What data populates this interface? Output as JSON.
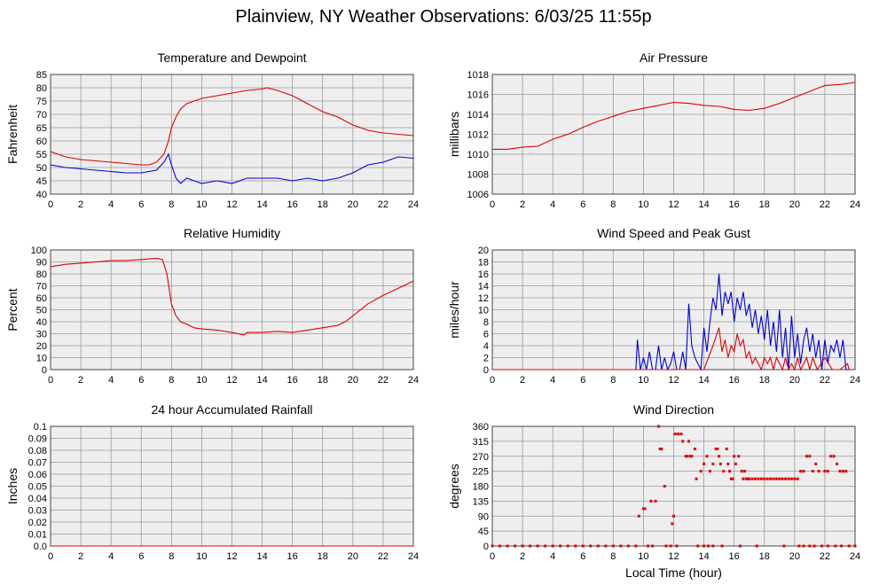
{
  "title": "Plainview, NY Weather Observations: 6/03/25 11:55p",
  "footer_xlabel": "Local Time (hour)",
  "colors": {
    "red": "#e00000",
    "blue": "#0000dd",
    "grid": "#999999",
    "bg": "#eeeeee"
  },
  "chart_data": [
    {
      "id": "temperature",
      "type": "line",
      "title": "Temperature and Dewpoint",
      "xlabel": "",
      "ylabel": "Fahrenheit",
      "xlim": [
        0,
        24
      ],
      "ylim": [
        40,
        85
      ],
      "xticks": [
        0,
        2,
        4,
        6,
        8,
        10,
        12,
        14,
        16,
        18,
        20,
        22,
        24
      ],
      "yticks": [
        40,
        45,
        50,
        55,
        60,
        65,
        70,
        75,
        80,
        85
      ],
      "grid": true,
      "series": [
        {
          "color": "#e00000",
          "x": [
            0,
            1,
            2,
            3,
            4,
            5,
            6,
            6.5,
            7,
            7.5,
            7.8,
            8,
            8.3,
            8.6,
            9,
            9.5,
            10,
            11,
            12,
            13,
            14,
            14.3,
            15,
            16,
            17,
            18,
            19,
            20,
            21,
            22,
            23,
            24
          ],
          "values": [
            56,
            54,
            53,
            52.5,
            52,
            51.5,
            51,
            51,
            52,
            55,
            60,
            65,
            69,
            72,
            74,
            75,
            76,
            77,
            78,
            79,
            79.5,
            80,
            79,
            77,
            74,
            71,
            69,
            66,
            64,
            63,
            62.5,
            62
          ]
        },
        {
          "color": "#0000dd",
          "x": [
            0,
            1,
            2,
            3,
            4,
            5,
            6,
            7,
            7.5,
            7.8,
            8,
            8.3,
            8.6,
            9,
            9.5,
            10,
            11,
            12,
            13,
            14,
            15,
            16,
            17,
            18,
            19,
            20,
            21,
            22,
            23,
            24
          ],
          "values": [
            51,
            50,
            49.5,
            49,
            48.5,
            48,
            48,
            49,
            52,
            55,
            51,
            46,
            44,
            46,
            45,
            44,
            45,
            44,
            46,
            46,
            46,
            45,
            46,
            45,
            46,
            48,
            51,
            52,
            54,
            53.5
          ]
        }
      ]
    },
    {
      "id": "pressure",
      "type": "line",
      "title": "Air Pressure",
      "xlabel": "",
      "ylabel": "millibars",
      "xlim": [
        0,
        24
      ],
      "ylim": [
        1006,
        1018
      ],
      "xticks": [
        0,
        2,
        4,
        6,
        8,
        10,
        12,
        14,
        16,
        18,
        20,
        22,
        24
      ],
      "yticks": [
        1006,
        1008,
        1010,
        1012,
        1014,
        1016,
        1018
      ],
      "grid": true,
      "series": [
        {
          "color": "#e00000",
          "x": [
            0,
            1,
            2,
            3,
            4,
            5,
            6,
            7,
            8,
            9,
            10,
            11,
            12,
            13,
            14,
            15,
            16,
            17,
            18,
            19,
            20,
            21,
            22,
            23,
            24
          ],
          "values": [
            1010.5,
            1010.5,
            1010.7,
            1010.8,
            1011.5,
            1012,
            1012.7,
            1013.3,
            1013.8,
            1014.3,
            1014.6,
            1014.9,
            1015.2,
            1015.1,
            1014.9,
            1014.8,
            1014.5,
            1014.4,
            1014.6,
            1015.1,
            1015.7,
            1016.3,
            1016.9,
            1017,
            1017.2
          ]
        }
      ]
    },
    {
      "id": "humidity",
      "type": "line",
      "title": "Relative Humidity",
      "xlabel": "",
      "ylabel": "Percent",
      "xlim": [
        0,
        24
      ],
      "ylim": [
        0,
        100
      ],
      "xticks": [
        0,
        2,
        4,
        6,
        8,
        10,
        12,
        14,
        16,
        18,
        20,
        22,
        24
      ],
      "yticks": [
        0,
        10,
        20,
        30,
        40,
        50,
        60,
        70,
        80,
        90,
        100
      ],
      "grid": true,
      "series": [
        {
          "color": "#e00000",
          "x": [
            0,
            1,
            2,
            3,
            4,
            5,
            6,
            7,
            7.4,
            7.7,
            8,
            8.3,
            8.6,
            9,
            9.5,
            10,
            11,
            12,
            12.8,
            13,
            14,
            15,
            16,
            17,
            18,
            19,
            19.5,
            20,
            21,
            22,
            23,
            24
          ],
          "values": [
            86,
            88,
            89,
            90,
            91,
            91,
            92,
            93,
            92,
            80,
            55,
            45,
            40,
            38,
            35,
            34,
            33,
            31,
            29,
            31,
            31,
            32,
            31,
            33,
            35,
            37,
            40,
            45,
            55,
            62,
            68,
            74
          ]
        }
      ]
    },
    {
      "id": "wind",
      "type": "line",
      "title": "Wind Speed and Peak Gust",
      "xlabel": "",
      "ylabel": "miles/hour",
      "xlim": [
        0,
        24
      ],
      "ylim": [
        0,
        20
      ],
      "xticks": [
        0,
        2,
        4,
        6,
        8,
        10,
        12,
        14,
        16,
        18,
        20,
        22,
        24
      ],
      "yticks": [
        0,
        2,
        4,
        6,
        8,
        10,
        12,
        14,
        16,
        18,
        20
      ],
      "grid": true,
      "series": [
        {
          "color": "#0000dd",
          "x": [
            0,
            9.5,
            9.6,
            9.8,
            10,
            10.2,
            10.4,
            10.6,
            10.8,
            11,
            11.2,
            11.4,
            11.6,
            11.8,
            12,
            12.2,
            12.4,
            12.6,
            12.8,
            13,
            13.2,
            13.4,
            13.6,
            13.8,
            14,
            14.2,
            14.4,
            14.6,
            14.8,
            15,
            15.2,
            15.4,
            15.6,
            15.8,
            16,
            16.2,
            16.4,
            16.6,
            16.8,
            17,
            17.2,
            17.4,
            17.6,
            17.8,
            18,
            18.2,
            18.4,
            18.6,
            18.8,
            19,
            19.2,
            19.4,
            19.6,
            19.8,
            20,
            20.2,
            20.4,
            20.6,
            20.8,
            21,
            21.2,
            21.4,
            21.6,
            21.8,
            22,
            22.2,
            22.4,
            22.6,
            22.8,
            23,
            23.2,
            23.4,
            23.6
          ],
          "values": [
            0,
            0,
            5,
            0,
            2,
            0,
            3,
            0,
            0,
            4,
            0,
            2,
            0,
            1,
            3,
            0,
            0,
            3,
            0,
            11,
            4,
            2,
            1,
            0,
            7,
            3,
            8,
            12,
            10,
            16,
            9,
            13,
            11,
            13,
            8,
            12,
            10,
            13,
            9,
            11,
            7,
            10,
            6,
            9,
            5,
            10,
            4,
            8,
            3,
            10,
            2,
            7,
            0,
            9,
            2,
            6,
            1,
            5,
            7,
            3,
            6,
            2,
            5,
            0,
            5,
            1,
            4,
            3,
            5,
            2,
            5,
            0,
            0
          ]
        },
        {
          "color": "#e00000",
          "x": [
            0,
            10.5,
            11,
            11.5,
            12,
            12.5,
            13,
            13.5,
            14,
            14.3,
            14.6,
            15,
            15.2,
            15.4,
            15.6,
            15.8,
            16,
            16.2,
            16.4,
            16.6,
            16.8,
            17,
            17.2,
            17.4,
            17.6,
            17.8,
            18,
            18.2,
            18.4,
            18.6,
            18.8,
            19,
            19.2,
            19.4,
            19.6,
            19.8,
            20,
            20.2,
            20.4,
            20.6,
            20.8,
            21,
            21.2,
            21.5,
            22,
            22.5,
            23,
            23.5,
            23.6
          ],
          "values": [
            0,
            0,
            0,
            0,
            0,
            0,
            0,
            0,
            0,
            2,
            4,
            7,
            3,
            5,
            2,
            4,
            3,
            6,
            4,
            5,
            2,
            3,
            1,
            2,
            1,
            0,
            2,
            1,
            2,
            0,
            2,
            1,
            0,
            2,
            0,
            1,
            0,
            2,
            0,
            1,
            2,
            0,
            2,
            0,
            2,
            0,
            0,
            1,
            0
          ]
        }
      ]
    },
    {
      "id": "rainfall",
      "type": "line",
      "title": "24 hour Accumulated Rainfall",
      "xlabel": "",
      "ylabel": "Inches",
      "xlim": [
        0,
        24
      ],
      "ylim": [
        0,
        0.1
      ],
      "xticks": [
        0,
        2,
        4,
        6,
        8,
        10,
        12,
        14,
        16,
        18,
        20,
        22,
        24
      ],
      "yticks": [
        "0.0",
        "0.01",
        "0.02",
        "0.03",
        "0.04",
        "0.05",
        "0.06",
        "0.07",
        "0.08",
        "0.09",
        "0.1"
      ],
      "grid": true,
      "series": [
        {
          "color": "#e00000",
          "x": [
            0,
            24
          ],
          "values": [
            0,
            0
          ]
        }
      ]
    },
    {
      "id": "direction",
      "type": "scatter",
      "title": "Wind Direction",
      "xlabel": "Local Time (hour)",
      "ylabel": "degrees",
      "xlim": [
        0,
        24
      ],
      "ylim": [
        0,
        360
      ],
      "xticks": [
        0,
        2,
        4,
        6,
        8,
        10,
        12,
        14,
        16,
        18,
        20,
        22,
        24
      ],
      "yticks": [
        0,
        45,
        90,
        135,
        180,
        225,
        270,
        315,
        360
      ],
      "grid": true,
      "series": [
        {
          "color": "#e00000",
          "x": [
            9.7,
            10,
            10.1,
            10.5,
            10.8,
            11,
            11.1,
            11.2,
            11.4,
            11.9,
            12,
            12.1,
            12.3,
            12.5,
            12.6,
            12.8,
            12.9,
            13,
            13.1,
            13.2,
            13.4,
            13.5,
            13.8,
            14,
            14.2,
            14.4,
            14.6,
            14.8,
            14.9,
            15,
            15.1,
            15.3,
            15.5,
            15.6,
            15.7,
            15.8,
            15.9,
            16,
            16.1,
            16.3,
            16.5,
            16.6,
            16.7,
            16.8,
            16.9,
            17,
            17.2,
            17.4,
            17.6,
            17.8,
            18,
            18.2,
            18.4,
            18.6,
            18.8,
            19,
            19.2,
            19.4,
            19.6,
            19.8,
            20,
            20.2,
            20.4,
            20.6,
            20.8,
            21,
            21.2,
            21.4,
            21.6,
            22,
            22.2,
            22.4,
            22.6,
            22.8,
            23,
            23.2,
            23.4
          ],
          "values": [
            90,
            112,
            112,
            135,
            135,
            360,
            292,
            292,
            180,
            67,
            90,
            337,
            337,
            337,
            315,
            270,
            270,
            315,
            270,
            270,
            292,
            202,
            225,
            247,
            270,
            225,
            247,
            292,
            292,
            270,
            247,
            225,
            292,
            247,
            225,
            202,
            202,
            270,
            247,
            270,
            225,
            202,
            225,
            202,
            202,
            202,
            202,
            202,
            202,
            202,
            202,
            202,
            202,
            202,
            202,
            202,
            202,
            202,
            202,
            202,
            202,
            202,
            225,
            225,
            270,
            270,
            225,
            247,
            225,
            225,
            225,
            270,
            270,
            247,
            225,
            225,
            225
          ]
        },
        {
          "color": "#e00000",
          "x": [
            0,
            0.5,
            1,
            1.5,
            2,
            2.5,
            3,
            3.5,
            4,
            4.5,
            5,
            5.5,
            6,
            6.5,
            7,
            7.5,
            8,
            8.5,
            9,
            9.5,
            10.3,
            10.6,
            11.5,
            11.8,
            12.2,
            13.6,
            14,
            14.3,
            14.6,
            15.2,
            16.4,
            17.5,
            19.3,
            20.3,
            20.6,
            21,
            21.3,
            21.8,
            22.2,
            22.7,
            23.1,
            23.6,
            24
          ],
          "values": [
            0,
            0,
            0,
            0,
            0,
            0,
            0,
            0,
            0,
            0,
            0,
            0,
            0,
            0,
            0,
            0,
            0,
            0,
            0,
            0,
            0,
            0,
            0,
            0,
            0,
            0,
            0,
            0,
            0,
            0,
            0,
            0,
            0,
            0,
            0,
            0,
            0,
            0,
            0,
            0,
            0,
            0,
            0
          ]
        }
      ]
    }
  ]
}
